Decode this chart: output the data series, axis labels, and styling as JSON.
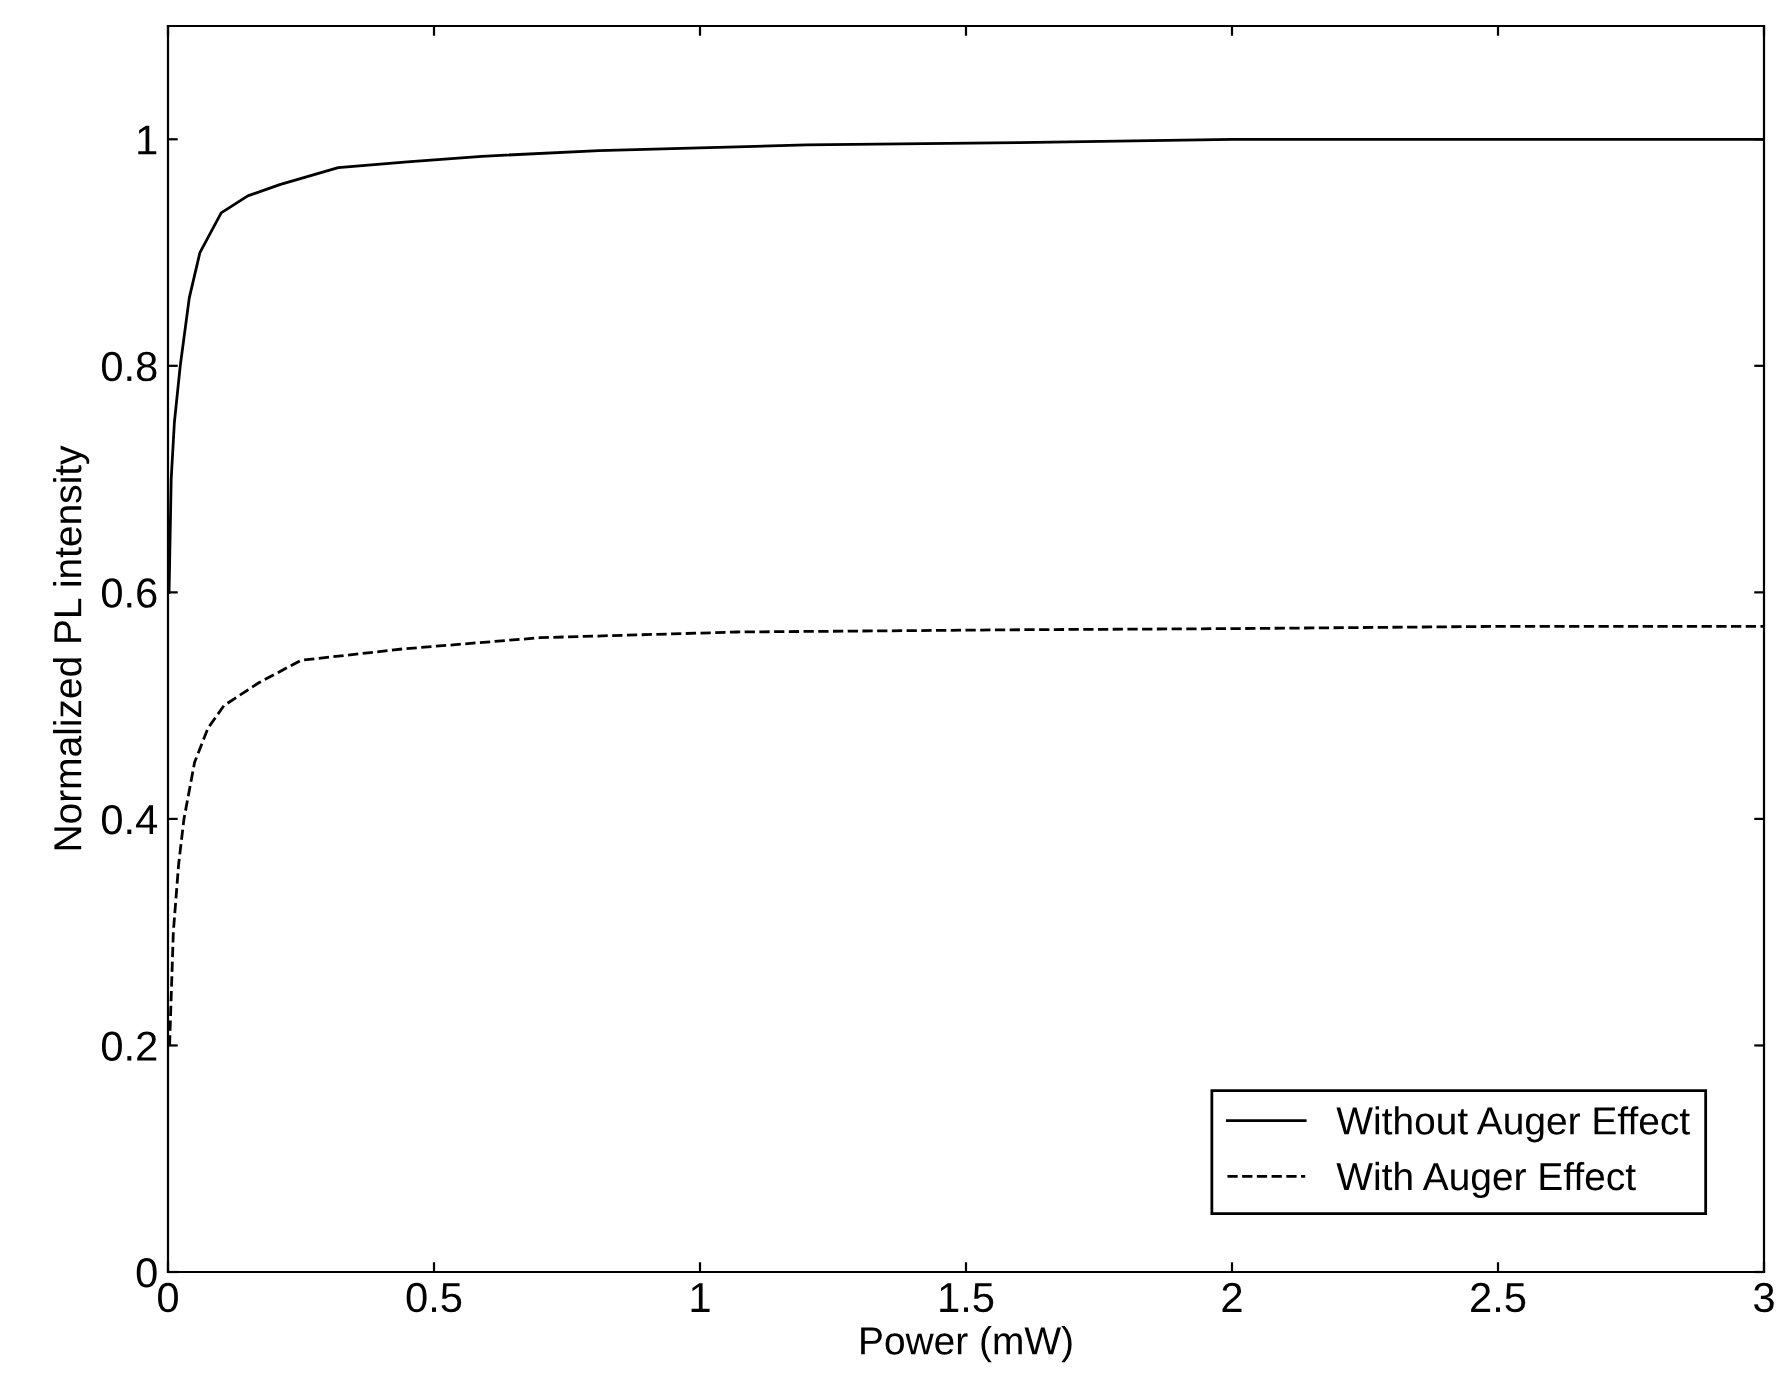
{
  "chart_data": {
    "type": "line",
    "xlabel": "Power (mW)",
    "ylabel": "Normalized PL intensity",
    "xlim": [
      0,
      3
    ],
    "ylim": [
      0,
      1.1
    ],
    "xticks": [
      0,
      0.5,
      1,
      1.5,
      2,
      2.5,
      3
    ],
    "yticks": [
      0,
      0.2,
      0.4,
      0.6,
      0.8,
      1
    ],
    "grid": false,
    "legend": "bottom right",
    "series": [
      {
        "name": "Without Auger Effect",
        "color": "#000000",
        "line_style": "solid",
        "x": [
          0.002,
          0.006,
          0.012,
          0.023,
          0.04,
          0.06,
          0.1,
          0.15,
          0.21,
          0.32,
          0.45,
          0.59,
          0.81,
          1.2,
          1.6,
          2,
          2.5,
          3
        ],
        "values": [
          0.6,
          0.7,
          0.75,
          0.8,
          0.86,
          0.9,
          0.935,
          0.95,
          0.96,
          0.975,
          0.98,
          0.985,
          0.99,
          0.995,
          0.997,
          1,
          1,
          1
        ]
      },
      {
        "name": "With Auger Effect",
        "color": "#000000",
        "line_style": "dashed",
        "x": [
          0.003,
          0.01,
          0.02,
          0.03,
          0.05,
          0.075,
          0.105,
          0.17,
          0.25,
          0.44,
          0.7,
          1.07,
          1.6,
          2,
          2.5,
          3
        ],
        "values": [
          0.2,
          0.3,
          0.36,
          0.4,
          0.45,
          0.48,
          0.5,
          0.52,
          0.54,
          0.55,
          0.56,
          0.565,
          0.567,
          0.568,
          0.57,
          0.57
        ]
      }
    ]
  }
}
